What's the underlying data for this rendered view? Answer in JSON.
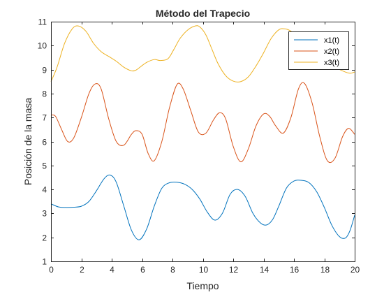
{
  "chart_data": {
    "type": "line",
    "title": "Método del Trapecio",
    "xlabel": "Tiempo",
    "ylabel": "Posición de la masa",
    "xlim": [
      0,
      20
    ],
    "ylim": [
      1,
      11
    ],
    "xticks": [
      0,
      2,
      4,
      6,
      8,
      10,
      12,
      14,
      16,
      18,
      20
    ],
    "yticks": [
      1,
      2,
      3,
      4,
      5,
      6,
      7,
      8,
      9,
      10,
      11
    ],
    "grid": false,
    "legend_position": "top-right",
    "series": [
      {
        "name": "x1(t)",
        "color": "#0072BD",
        "x": [
          0,
          0.5,
          1,
          1.5,
          2,
          2.5,
          3,
          3.5,
          3.9,
          4.3,
          4.8,
          5.3,
          5.8,
          6.3,
          6.8,
          7.3,
          7.8,
          8.3,
          8.8,
          9.3,
          9.8,
          10.3,
          10.8,
          11.3,
          11.8,
          12.3,
          12.8,
          13.3,
          13.8,
          14.2,
          14.6,
          15.0,
          15.5,
          16.0,
          16.5,
          17.0,
          17.5,
          18.0,
          18.5,
          19.0,
          19.4,
          19.7,
          20.0
        ],
        "y": [
          3.4,
          3.27,
          3.25,
          3.26,
          3.3,
          3.5,
          3.95,
          4.45,
          4.6,
          4.3,
          3.3,
          2.3,
          1.9,
          2.35,
          3.3,
          4.05,
          4.28,
          4.3,
          4.22,
          4.0,
          3.6,
          3.05,
          2.72,
          3.02,
          3.8,
          4.0,
          3.7,
          3.0,
          2.6,
          2.52,
          2.75,
          3.3,
          4.05,
          4.35,
          4.38,
          4.28,
          3.9,
          3.25,
          2.5,
          2.03,
          1.98,
          2.3,
          2.93
        ]
      },
      {
        "name": "x2(t)",
        "color": "#D95319",
        "x": [
          0,
          0.3,
          0.7,
          1.1,
          1.5,
          2.0,
          2.5,
          2.9,
          3.3,
          3.8,
          4.3,
          4.8,
          5.3,
          5.6,
          6.0,
          6.4,
          6.8,
          7.3,
          7.8,
          8.3,
          8.7,
          9.2,
          9.7,
          10.2,
          10.7,
          11.1,
          11.5,
          12.0,
          12.5,
          13.0,
          13.5,
          14.0,
          14.4,
          14.8,
          15.3,
          15.8,
          16.3,
          16.7,
          17.2,
          17.7,
          18.2,
          18.7,
          19.2,
          19.6,
          20.0
        ],
        "y": [
          7.1,
          7.05,
          6.5,
          6.0,
          6.15,
          7.0,
          8.0,
          8.4,
          8.2,
          6.95,
          6.0,
          5.85,
          6.3,
          6.45,
          6.3,
          5.5,
          5.2,
          6.0,
          7.4,
          8.38,
          8.2,
          7.3,
          6.4,
          6.35,
          6.9,
          7.2,
          6.95,
          5.8,
          5.15,
          5.7,
          6.65,
          7.15,
          7.05,
          6.65,
          6.35,
          7.0,
          8.2,
          8.42,
          7.6,
          6.2,
          5.2,
          5.3,
          6.2,
          6.55,
          6.3
        ]
      },
      {
        "name": "x3(t)",
        "color": "#EDB120",
        "x": [
          0,
          0.4,
          0.9,
          1.4,
          1.8,
          2.3,
          2.8,
          3.3,
          3.8,
          4.3,
          4.8,
          5.3,
          5.6,
          5.9,
          6.3,
          6.8,
          7.2,
          7.7,
          8.1,
          8.5,
          9.0,
          9.5,
          9.8,
          10.2,
          10.6,
          11.0,
          11.5,
          12.0,
          12.5,
          13.0,
          13.5,
          14.0,
          14.5,
          15.0,
          15.4,
          15.8,
          16.3,
          16.8,
          17.3,
          17.8,
          18.3,
          18.8,
          19.3,
          19.7,
          20.0
        ],
        "y": [
          8.5,
          9.1,
          10.1,
          10.7,
          10.82,
          10.6,
          10.1,
          9.75,
          9.55,
          9.35,
          9.1,
          8.95,
          8.98,
          9.12,
          9.3,
          9.42,
          9.38,
          9.45,
          9.85,
          10.3,
          10.65,
          10.82,
          10.78,
          10.45,
          9.85,
          9.25,
          8.75,
          8.52,
          8.5,
          8.7,
          9.15,
          9.7,
          10.3,
          10.66,
          10.7,
          10.6,
          10.3,
          10.0,
          9.78,
          9.8,
          9.55,
          9.1,
          8.92,
          8.85,
          8.9
        ]
      }
    ]
  }
}
